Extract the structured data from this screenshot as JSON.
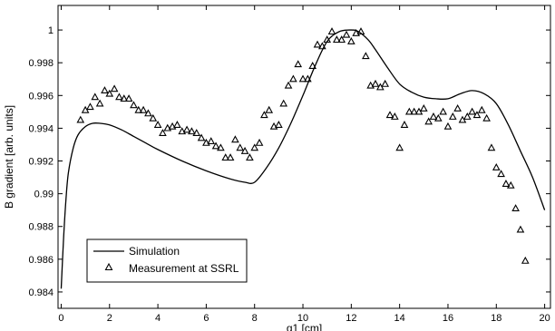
{
  "chart_data": {
    "type": "line",
    "xlabel": "q1 [cm]",
    "ylabel": "B gradient [arb. units]",
    "xlim": [
      0,
      20
    ],
    "ylim": [
      0.983,
      1.0015
    ],
    "xticks": [
      "0",
      "2",
      "4",
      "6",
      "8",
      "10",
      "12",
      "14",
      "16",
      "18",
      "20"
    ],
    "yticks": [
      "0.984",
      "0.986",
      "0.988",
      "0.99",
      "0.992",
      "0.994",
      "0.996",
      "0.998",
      "1"
    ],
    "grid": false,
    "legend": {
      "placement": "bottom-left"
    },
    "series": [
      {
        "name": "Simulation",
        "kind": "line",
        "color": "#000000",
        "x": [
          0.0,
          0.1,
          0.2,
          0.3,
          0.5,
          0.7,
          1.0,
          1.3,
          1.6,
          2.0,
          2.5,
          3.0,
          3.5,
          4.0,
          5.0,
          6.0,
          7.0,
          7.6,
          8.0,
          8.5,
          9.0,
          9.5,
          10.0,
          10.5,
          11.0,
          11.5,
          12.0,
          12.3,
          12.7,
          13.0,
          13.5,
          14.0,
          14.5,
          15.0,
          15.5,
          16.0,
          16.5,
          17.0,
          17.5,
          18.0,
          18.5,
          19.0,
          19.5,
          20.0
        ],
        "y": [
          0.9842,
          0.9873,
          0.9897,
          0.9913,
          0.9928,
          0.9936,
          0.9941,
          0.9943,
          0.9943,
          0.9942,
          0.9939,
          0.9935,
          0.9931,
          0.9927,
          0.992,
          0.9914,
          0.9909,
          0.9907,
          0.9907,
          0.9916,
          0.9928,
          0.9943,
          0.996,
          0.9978,
          0.9993,
          0.9999,
          1.0,
          0.9999,
          0.9994,
          0.9988,
          0.9977,
          0.9967,
          0.9962,
          0.9959,
          0.9958,
          0.9958,
          0.9961,
          0.9963,
          0.9961,
          0.9955,
          0.9942,
          0.9926,
          0.991,
          0.989
        ]
      },
      {
        "name": "Measurement at SSRL",
        "kind": "scatter",
        "marker": "triangle",
        "x": [
          0.8,
          1.0,
          1.2,
          1.4,
          1.6,
          1.8,
          2.0,
          2.2,
          2.4,
          2.6,
          2.8,
          3.0,
          3.2,
          3.4,
          3.6,
          3.8,
          4.0,
          4.2,
          4.4,
          4.6,
          4.8,
          5.0,
          5.2,
          5.4,
          5.6,
          5.8,
          6.0,
          6.2,
          6.4,
          6.6,
          6.8,
          7.0,
          7.2,
          7.4,
          7.6,
          7.8,
          8.0,
          8.2,
          8.4,
          8.6,
          8.8,
          9.0,
          9.2,
          9.4,
          9.6,
          9.8,
          10.0,
          10.2,
          10.4,
          10.6,
          10.8,
          11.0,
          11.2,
          11.4,
          11.6,
          11.8,
          12.0,
          12.2,
          12.4,
          12.6,
          12.8,
          13.0,
          13.2,
          13.4,
          13.6,
          13.8,
          14.0,
          14.2,
          14.4,
          14.6,
          14.8,
          15.0,
          15.2,
          15.4,
          15.6,
          15.8,
          16.0,
          16.2,
          16.4,
          16.6,
          16.8,
          17.0,
          17.2,
          17.4,
          17.6,
          17.8,
          18.0,
          18.2,
          18.4,
          18.6,
          18.8,
          19.0,
          19.2
        ],
        "y": [
          0.9945,
          0.9951,
          0.9953,
          0.9959,
          0.9955,
          0.9963,
          0.9961,
          0.9964,
          0.9959,
          0.9958,
          0.9958,
          0.9954,
          0.9951,
          0.9951,
          0.9949,
          0.9946,
          0.9942,
          0.9937,
          0.994,
          0.9941,
          0.9942,
          0.9938,
          0.9939,
          0.9938,
          0.9937,
          0.9934,
          0.9931,
          0.9932,
          0.9929,
          0.9928,
          0.9922,
          0.9922,
          0.9933,
          0.9928,
          0.9926,
          0.9922,
          0.9928,
          0.9931,
          0.9948,
          0.9951,
          0.9941,
          0.9942,
          0.9955,
          0.9966,
          0.997,
          0.9979,
          0.997,
          0.997,
          0.9978,
          0.9991,
          0.999,
          0.9994,
          0.9999,
          0.9994,
          0.9994,
          0.9997,
          0.9993,
          0.9998,
          0.9999,
          0.9984,
          0.9966,
          0.9967,
          0.9965,
          0.9967,
          0.9948,
          0.9947,
          0.9928,
          0.9942,
          0.995,
          0.995,
          0.995,
          0.9952,
          0.9944,
          0.9947,
          0.9946,
          0.995,
          0.9941,
          0.9947,
          0.9952,
          0.9945,
          0.9947,
          0.995,
          0.9948,
          0.9951,
          0.9946,
          0.9928,
          0.9916,
          0.9912,
          0.9906,
          0.9905,
          0.9891,
          0.9878,
          0.9859
        ]
      }
    ]
  }
}
